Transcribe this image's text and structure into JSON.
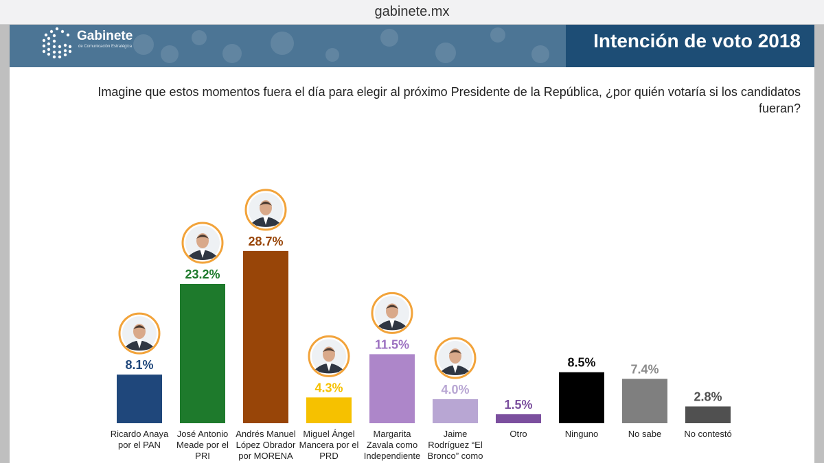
{
  "browser": {
    "url": "gabinete.mx"
  },
  "header": {
    "brand": "Gabinete",
    "brand_sub": "de Comunicación Estratégica",
    "title": "Intención de voto 2018",
    "colors": {
      "bar": "#4c7595",
      "title_bg": "#1d4d75"
    }
  },
  "question": "Imagine que estos momentos fuera el día para elegir al próximo Presidente de la República, ¿por quién votaría si los candidatos fueran?",
  "chart_data": {
    "type": "bar",
    "title": "Intención de voto 2018",
    "ylabel": "%",
    "ylim": [
      0,
      30
    ],
    "categories": [
      "Ricardo Anaya por el PAN",
      "José Antonio Meade por el PRI",
      "Andrés Manuel López Obrador por MORENA",
      "Miguel Ángel Mancera por el PRD",
      "Margarita Zavala como Independiente",
      "Jaime Rodríguez “El Bronco” como",
      "Otro",
      "Ninguno",
      "No sabe",
      "No contestó"
    ],
    "label_lines": [
      [
        "Ricardo Anaya",
        "por el PAN"
      ],
      [
        "José Antonio",
        "Meade por el",
        "PRI"
      ],
      [
        "Andrés Manuel",
        "López Obrador",
        "por MORENA"
      ],
      [
        "Miguel Ángel",
        "Mancera por el",
        "PRD"
      ],
      [
        "Margarita",
        "Zavala como",
        "Independiente"
      ],
      [
        "Jaime",
        "Rodríguez “El",
        "Bronco” como"
      ],
      [
        "Otro"
      ],
      [
        "Ninguno"
      ],
      [
        "No sabe"
      ],
      [
        "No contestó"
      ]
    ],
    "values": [
      8.1,
      23.2,
      28.7,
      4.3,
      11.5,
      4.0,
      1.5,
      8.5,
      7.4,
      2.8
    ],
    "value_labels": [
      "8.1%",
      "23.2%",
      "28.7%",
      "4.3%",
      "11.5%",
      "4.0%",
      "1.5%",
      "8.5%",
      "7.4%",
      "2.8%"
    ],
    "colors": [
      "#1f477b",
      "#1e7a2c",
      "#984508",
      "#f6c100",
      "#ad86c9",
      "#b8a6d3",
      "#7b4f9e",
      "#000000",
      "#7f7f7f",
      "#505050"
    ],
    "label_colors": [
      "#1f477b",
      "#1e7a2c",
      "#984508",
      "#f6c100",
      "#9b6fc0",
      "#b8a6d3",
      "#7b4f9e",
      "#111111",
      "#8c8c8c",
      "#505050"
    ],
    "has_photo": [
      true,
      true,
      true,
      true,
      true,
      true,
      false,
      false,
      false,
      false
    ],
    "photo_icons": [
      "candidate-photo-anaya-icon",
      "candidate-photo-meade-icon",
      "candidate-photo-amlo-icon",
      "candidate-photo-mancera-icon",
      "candidate-photo-zavala-icon",
      "candidate-photo-bronco-icon"
    ],
    "photo_ring_color": "#f2a33a"
  }
}
